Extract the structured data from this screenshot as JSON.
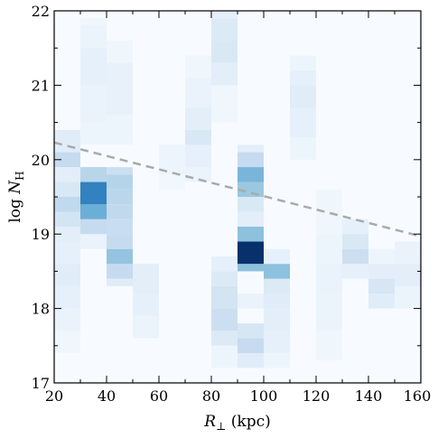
{
  "chart_data": {
    "type": "heatmap",
    "xlabel": "R⊥ (kpc)",
    "ylabel": "log N_H",
    "xlim": [
      20,
      160
    ],
    "ylim": [
      17,
      22
    ],
    "x_bin_width": 10,
    "y_bin_width": 0.1,
    "x_ticks": [
      20,
      40,
      60,
      80,
      100,
      120,
      140,
      160
    ],
    "y_ticks": [
      17,
      18,
      19,
      20,
      21,
      22
    ],
    "colormap": "Blues",
    "grid": false,
    "columns": [
      {
        "x0": 20,
        "cells": [
          [
            17.4,
            17.7,
            0.05
          ],
          [
            17.7,
            18.0,
            0.08
          ],
          [
            18.0,
            18.3,
            0.1
          ],
          [
            18.3,
            18.6,
            0.14
          ],
          [
            18.6,
            18.9,
            0.1
          ],
          [
            18.9,
            19.1,
            0.12
          ],
          [
            19.1,
            19.3,
            0.22
          ],
          [
            19.3,
            19.5,
            0.32
          ],
          [
            19.5,
            19.7,
            0.18
          ],
          [
            19.7,
            19.9,
            0.12
          ],
          [
            19.9,
            20.1,
            0.3
          ],
          [
            20.1,
            20.4,
            0.14
          ]
        ]
      },
      {
        "x0": 30,
        "cells": [
          [
            18.8,
            19.0,
            0.08
          ],
          [
            19.0,
            19.2,
            0.3
          ],
          [
            19.2,
            19.4,
            0.6
          ],
          [
            19.4,
            19.7,
            0.78
          ],
          [
            19.7,
            19.9,
            0.35
          ],
          [
            20.2,
            20.5,
            0.06
          ],
          [
            20.5,
            21.0,
            0.08
          ],
          [
            21.0,
            21.5,
            0.1
          ],
          [
            21.5,
            21.8,
            0.07
          ],
          [
            21.8,
            21.9,
            0.05
          ]
        ]
      },
      {
        "x0": 40,
        "cells": [
          [
            18.3,
            18.4,
            0.14
          ],
          [
            18.4,
            18.6,
            0.3
          ],
          [
            18.6,
            18.8,
            0.48
          ],
          [
            18.8,
            19.0,
            0.3
          ],
          [
            19.0,
            19.2,
            0.28
          ],
          [
            19.2,
            19.4,
            0.32
          ],
          [
            19.4,
            19.6,
            0.34
          ],
          [
            19.6,
            19.8,
            0.36
          ],
          [
            19.8,
            19.9,
            0.26
          ],
          [
            20.2,
            20.6,
            0.06
          ],
          [
            20.6,
            21.3,
            0.09
          ],
          [
            21.3,
            21.6,
            0.05
          ]
        ]
      },
      {
        "x0": 50,
        "cells": [
          [
            17.6,
            17.9,
            0.07
          ],
          [
            17.9,
            18.2,
            0.1
          ],
          [
            18.2,
            18.6,
            0.12
          ]
        ]
      },
      {
        "x0": 60,
        "cells": [
          [
            19.6,
            19.8,
            0.04
          ],
          [
            19.8,
            20.2,
            0.06
          ]
        ]
      },
      {
        "x0": 70,
        "cells": [
          [
            19.7,
            19.9,
            0.07
          ],
          [
            19.9,
            20.2,
            0.1
          ],
          [
            20.2,
            20.4,
            0.18
          ],
          [
            20.4,
            20.7,
            0.12
          ],
          [
            20.7,
            21.1,
            0.08
          ],
          [
            21.1,
            21.4,
            0.05
          ]
        ]
      },
      {
        "x0": 80,
        "cells": [
          [
            17.2,
            17.5,
            0.06
          ],
          [
            17.5,
            17.7,
            0.16
          ],
          [
            17.7,
            18.0,
            0.26
          ],
          [
            18.0,
            18.3,
            0.22
          ],
          [
            18.3,
            18.5,
            0.16
          ],
          [
            18.5,
            18.7,
            0.1
          ],
          [
            20.5,
            21.0,
            0.05
          ],
          [
            21.0,
            21.3,
            0.12
          ],
          [
            21.3,
            21.6,
            0.18
          ],
          [
            21.6,
            21.9,
            0.16
          ],
          [
            21.9,
            22.0,
            0.1
          ]
        ]
      },
      {
        "x0": 90,
        "cells": [
          [
            17.2,
            17.4,
            0.14
          ],
          [
            17.4,
            17.6,
            0.3
          ],
          [
            17.6,
            17.8,
            0.2
          ],
          [
            18.0,
            18.2,
            0.08
          ],
          [
            18.5,
            18.6,
            0.5
          ],
          [
            18.6,
            18.9,
            1.0
          ],
          [
            18.9,
            19.1,
            0.5
          ],
          [
            19.1,
            19.3,
            0.12
          ],
          [
            19.3,
            19.5,
            0.18
          ],
          [
            19.5,
            19.7,
            0.46
          ],
          [
            19.7,
            19.9,
            0.56
          ],
          [
            19.9,
            20.1,
            0.3
          ],
          [
            20.1,
            20.2,
            0.12
          ]
        ]
      },
      {
        "x0": 100,
        "cells": [
          [
            17.2,
            17.4,
            0.06
          ],
          [
            17.4,
            17.7,
            0.1
          ],
          [
            17.7,
            18.0,
            0.12
          ],
          [
            18.0,
            18.2,
            0.14
          ],
          [
            18.2,
            18.4,
            0.16
          ],
          [
            18.4,
            18.6,
            0.5
          ],
          [
            18.6,
            18.8,
            0.1
          ]
        ]
      },
      {
        "x0": 110,
        "cells": [
          [
            20.0,
            20.3,
            0.06
          ],
          [
            20.3,
            20.7,
            0.1
          ],
          [
            20.7,
            21.0,
            0.14
          ],
          [
            21.0,
            21.2,
            0.1
          ],
          [
            21.2,
            21.4,
            0.06
          ]
        ]
      },
      {
        "x0": 120,
        "cells": [
          [
            17.3,
            17.7,
            0.05
          ],
          [
            17.7,
            18.2,
            0.07
          ],
          [
            18.2,
            18.6,
            0.08
          ],
          [
            18.6,
            19.0,
            0.06
          ],
          [
            19.0,
            19.6,
            0.05
          ]
        ]
      },
      {
        "x0": 130,
        "cells": [
          [
            18.4,
            18.6,
            0.1
          ],
          [
            18.6,
            18.8,
            0.26
          ],
          [
            18.8,
            19.0,
            0.18
          ],
          [
            19.0,
            19.2,
            0.1
          ]
        ]
      },
      {
        "x0": 140,
        "cells": [
          [
            18.0,
            18.2,
            0.14
          ],
          [
            18.2,
            18.4,
            0.2
          ],
          [
            18.4,
            18.6,
            0.12
          ],
          [
            18.6,
            18.8,
            0.06
          ]
        ]
      },
      {
        "x0": 150,
        "cells": [
          [
            18.0,
            18.3,
            0.07
          ],
          [
            18.3,
            18.6,
            0.12
          ],
          [
            18.6,
            18.9,
            0.08
          ]
        ]
      }
    ],
    "reference_line": {
      "style": "dashed",
      "color": "#aaaaaa",
      "x": [
        20,
        160
      ],
      "y": [
        20.23,
        18.97
      ]
    }
  }
}
